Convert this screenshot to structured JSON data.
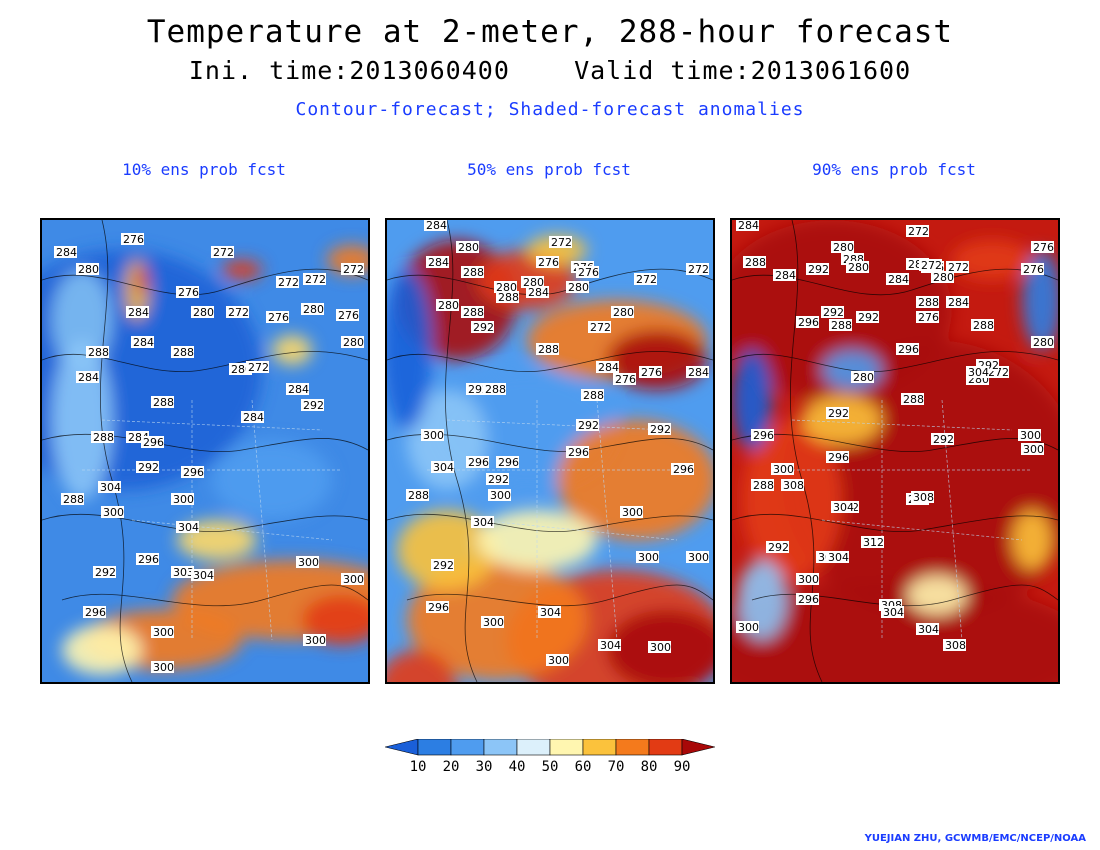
{
  "header": {
    "title": "Temperature at 2-meter, 288-hour forecast",
    "init_and_valid": "Ini. time:2013060400    Valid time:2013061600",
    "legend_note": "Contour-forecast; Shaded-forecast anomalies"
  },
  "panels": [
    {
      "label": "10% ens prob fcst",
      "contour_labels": [
        "284",
        "280",
        "276",
        "272",
        "272",
        "272",
        "284",
        "280",
        "276",
        "272",
        "276",
        "272",
        "276",
        "284",
        "288",
        "280",
        "272",
        "280",
        "280",
        "284",
        "288",
        "284",
        "288",
        "284",
        "292",
        "288",
        "284",
        "296",
        "292",
        "296",
        "304",
        "288",
        "300",
        "300",
        "304",
        "296",
        "292",
        "303",
        "304",
        "296",
        "300",
        "300",
        "300",
        "300",
        "300"
      ]
    },
    {
      "label": "50% ens prob fcst",
      "contour_labels": [
        "284",
        "280",
        "284",
        "288",
        "272",
        "276",
        "276",
        "276",
        "272",
        "272",
        "280",
        "280",
        "284",
        "280",
        "288",
        "292",
        "280",
        "288",
        "292",
        "272",
        "280",
        "276",
        "284",
        "284",
        "276",
        "288",
        "284",
        "292",
        "288",
        "288",
        "292",
        "292",
        "296",
        "300",
        "304",
        "296",
        "296",
        "292",
        "300",
        "296",
        "300",
        "288",
        "304",
        "300",
        "300",
        "292",
        "296",
        "304",
        "300",
        "304",
        "300",
        "300"
      ]
    },
    {
      "label": "90% ens prob fcst",
      "contour_labels": [
        "284",
        "272",
        "280",
        "288",
        "284",
        "292",
        "288",
        "280",
        "276",
        "280",
        "280",
        "276",
        "272",
        "284",
        "272",
        "276",
        "292",
        "288",
        "284",
        "296",
        "292",
        "288",
        "276",
        "288",
        "280",
        "296",
        "272",
        "292",
        "280",
        "280",
        "296",
        "292",
        "288",
        "292",
        "304",
        "300",
        "296",
        "300",
        "296",
        "292",
        "304",
        "300",
        "308",
        "308",
        "304",
        "288",
        "312",
        "292",
        "304",
        "300",
        "296",
        "308",
        "304",
        "304",
        "308",
        "300"
      ]
    }
  ],
  "colorbar": {
    "ticks": [
      "10",
      "20",
      "30",
      "40",
      "50",
      "60",
      "70",
      "80",
      "90"
    ],
    "colors": [
      "#1a5fd9",
      "#2c7ee3",
      "#4f9cef",
      "#8cc5f7",
      "#dcf0fb",
      "#fff6b0",
      "#fbc23c",
      "#f47a1c",
      "#e23b14",
      "#a80808"
    ]
  },
  "credit": "YUEJIAN ZHU, GCWMB/EMC/NCEP/NOAA"
}
